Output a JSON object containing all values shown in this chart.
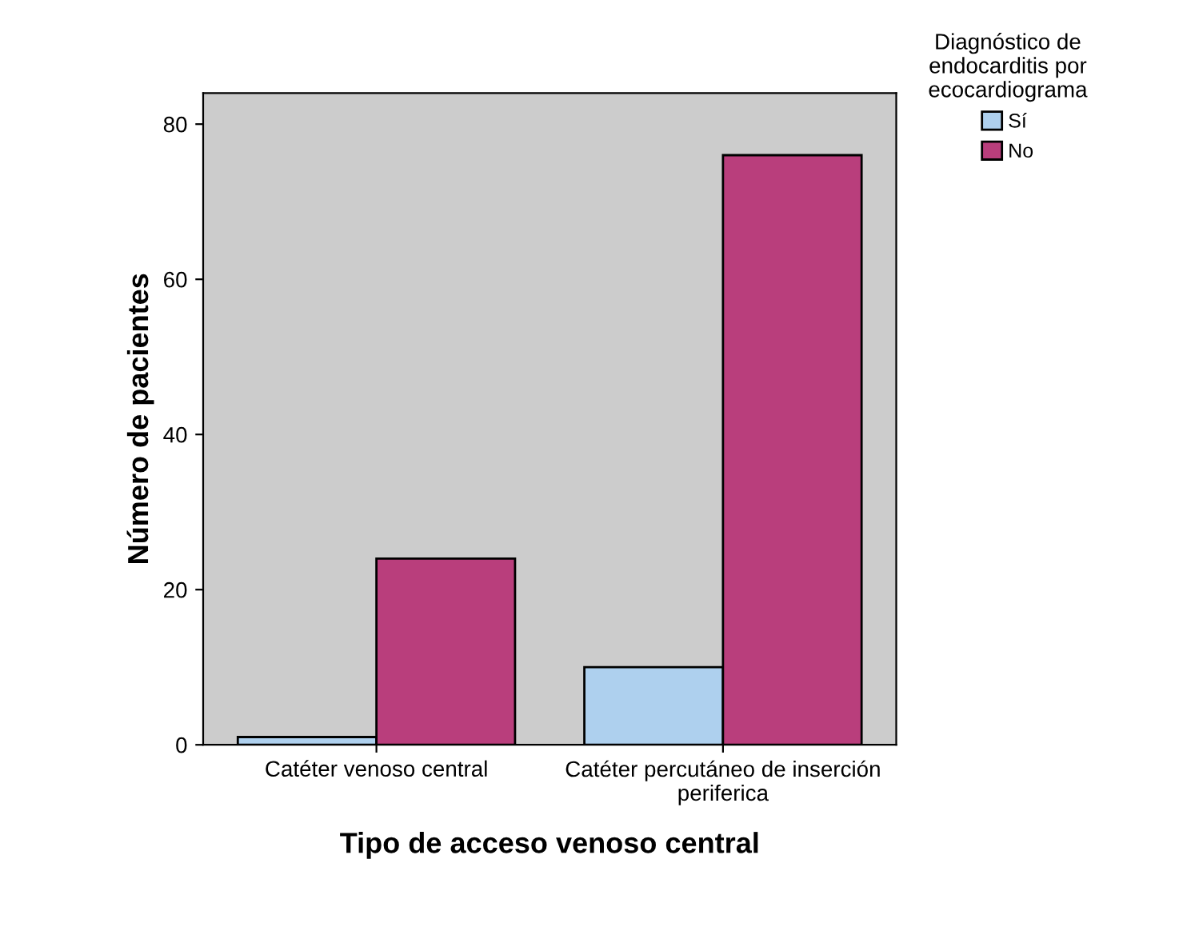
{
  "chart_data": {
    "type": "bar",
    "xlabel": "Tipo de acceso venoso central",
    "ylabel": "Número de pacientes",
    "legend_title": "Diagnóstico de\nendocarditis por\necocardiograma",
    "categories": [
      "Catéter venoso central",
      "Catéter percutáneo de inserción\nperiferica"
    ],
    "series": [
      {
        "name": "Sí",
        "color": "#aed0ee",
        "values": [
          1,
          10
        ]
      },
      {
        "name": "No",
        "color": "#b93e7c",
        "values": [
          24,
          76
        ]
      }
    ],
    "ylim": [
      0,
      84
    ],
    "yticks": [
      0,
      20,
      40,
      60,
      80
    ],
    "grid": false,
    "legend": "top right"
  }
}
